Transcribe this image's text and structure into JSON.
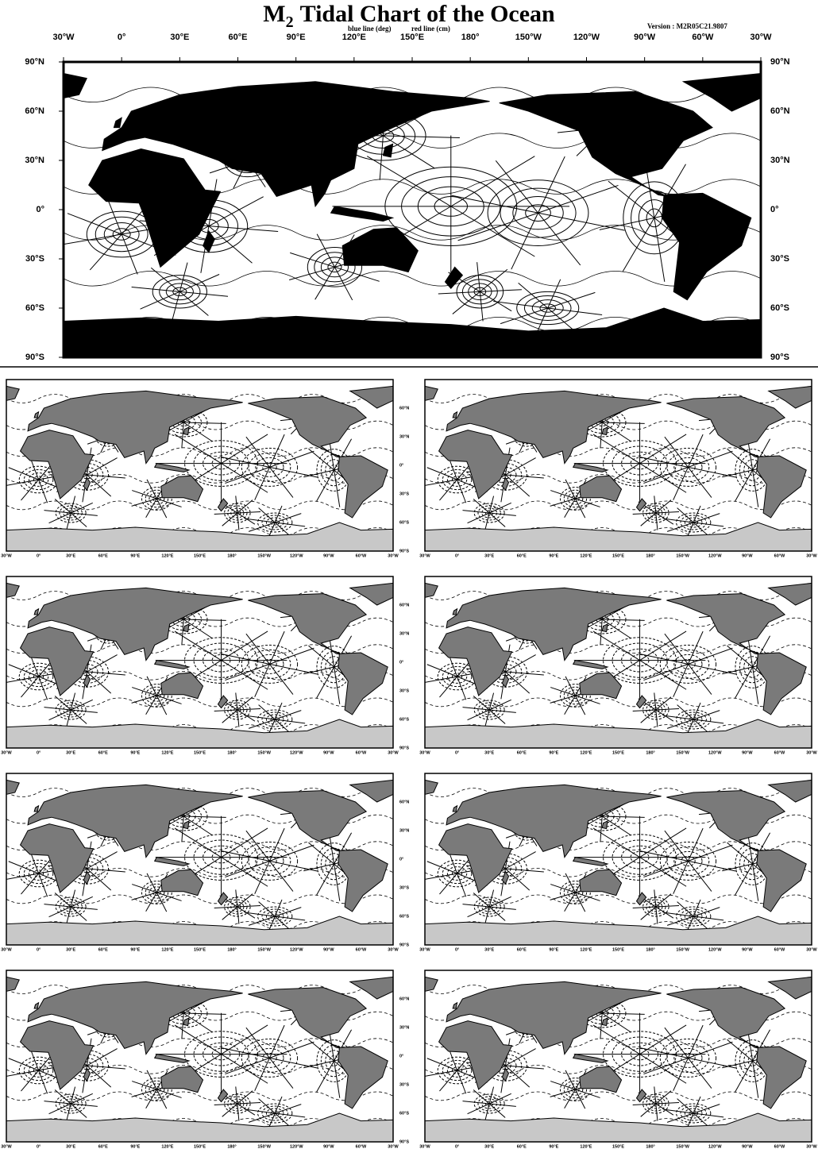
{
  "header": {
    "title": "M",
    "title_subscript": "2",
    "title_rest": "Tidal Chart of the Ocean",
    "legend_blue": "blue line (deg)",
    "legend_red": "red line (cm)",
    "version": "Version : M2R05C21.9807"
  },
  "axes": {
    "longitude_labels": [
      "30°W",
      "0°",
      "30°E",
      "60°E",
      "90°E",
      "120°E",
      "150°E",
      "180°",
      "150°W",
      "120°W",
      "90°W",
      "60°W",
      "30°W"
    ],
    "latitude_labels": [
      "90°N",
      "60°N",
      "30°N",
      "0°",
      "30°S",
      "60°S",
      "90°S"
    ]
  }
}
